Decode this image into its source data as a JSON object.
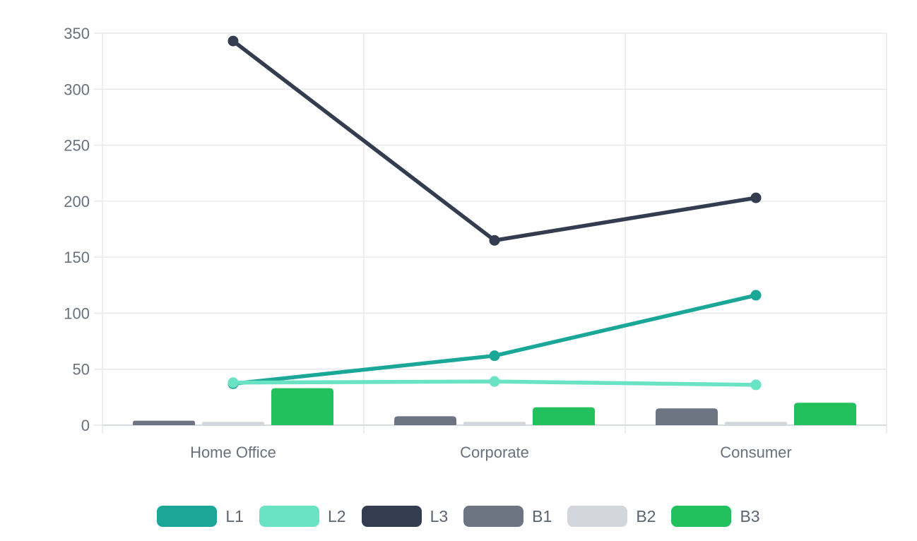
{
  "page": {
    "background": "#ffffff"
  },
  "chart_data": {
    "type": "combo-bar-line",
    "title": "",
    "xlabel": "",
    "ylabel": "",
    "categories": [
      "Home Office",
      "Corporate",
      "Consumer"
    ],
    "series": [
      {
        "name": "L1",
        "type": "line",
        "color": "#1aa797",
        "values": [
          37,
          62,
          116
        ]
      },
      {
        "name": "L2",
        "type": "line",
        "color": "#6ae2c4",
        "values": [
          38,
          39,
          36
        ]
      },
      {
        "name": "L3",
        "type": "line",
        "color": "#333d4f",
        "values": [
          343,
          165,
          203
        ]
      },
      {
        "name": "B1",
        "type": "bar",
        "color": "#6d7583",
        "values": [
          4,
          8,
          15
        ]
      },
      {
        "name": "B2",
        "type": "bar",
        "color": "#d3d6dc",
        "values": [
          3,
          3,
          3
        ]
      },
      {
        "name": "B3",
        "type": "bar",
        "color": "#23c05e",
        "values": [
          33,
          16,
          20
        ]
      }
    ],
    "yticks": [
      0,
      50,
      100,
      150,
      200,
      250,
      300,
      350
    ],
    "ylim": [
      0,
      350
    ],
    "grid": true,
    "legend_position": "bottom",
    "legend": [
      "L1",
      "L2",
      "L3",
      "B1",
      "B2",
      "B3"
    ],
    "colors": {
      "gridline": "#e7e9ec",
      "axis_line": "#d8dbdf",
      "tick_label": "#6a717b",
      "legend_label": "#5b6470",
      "background": "#ffffff"
    }
  }
}
